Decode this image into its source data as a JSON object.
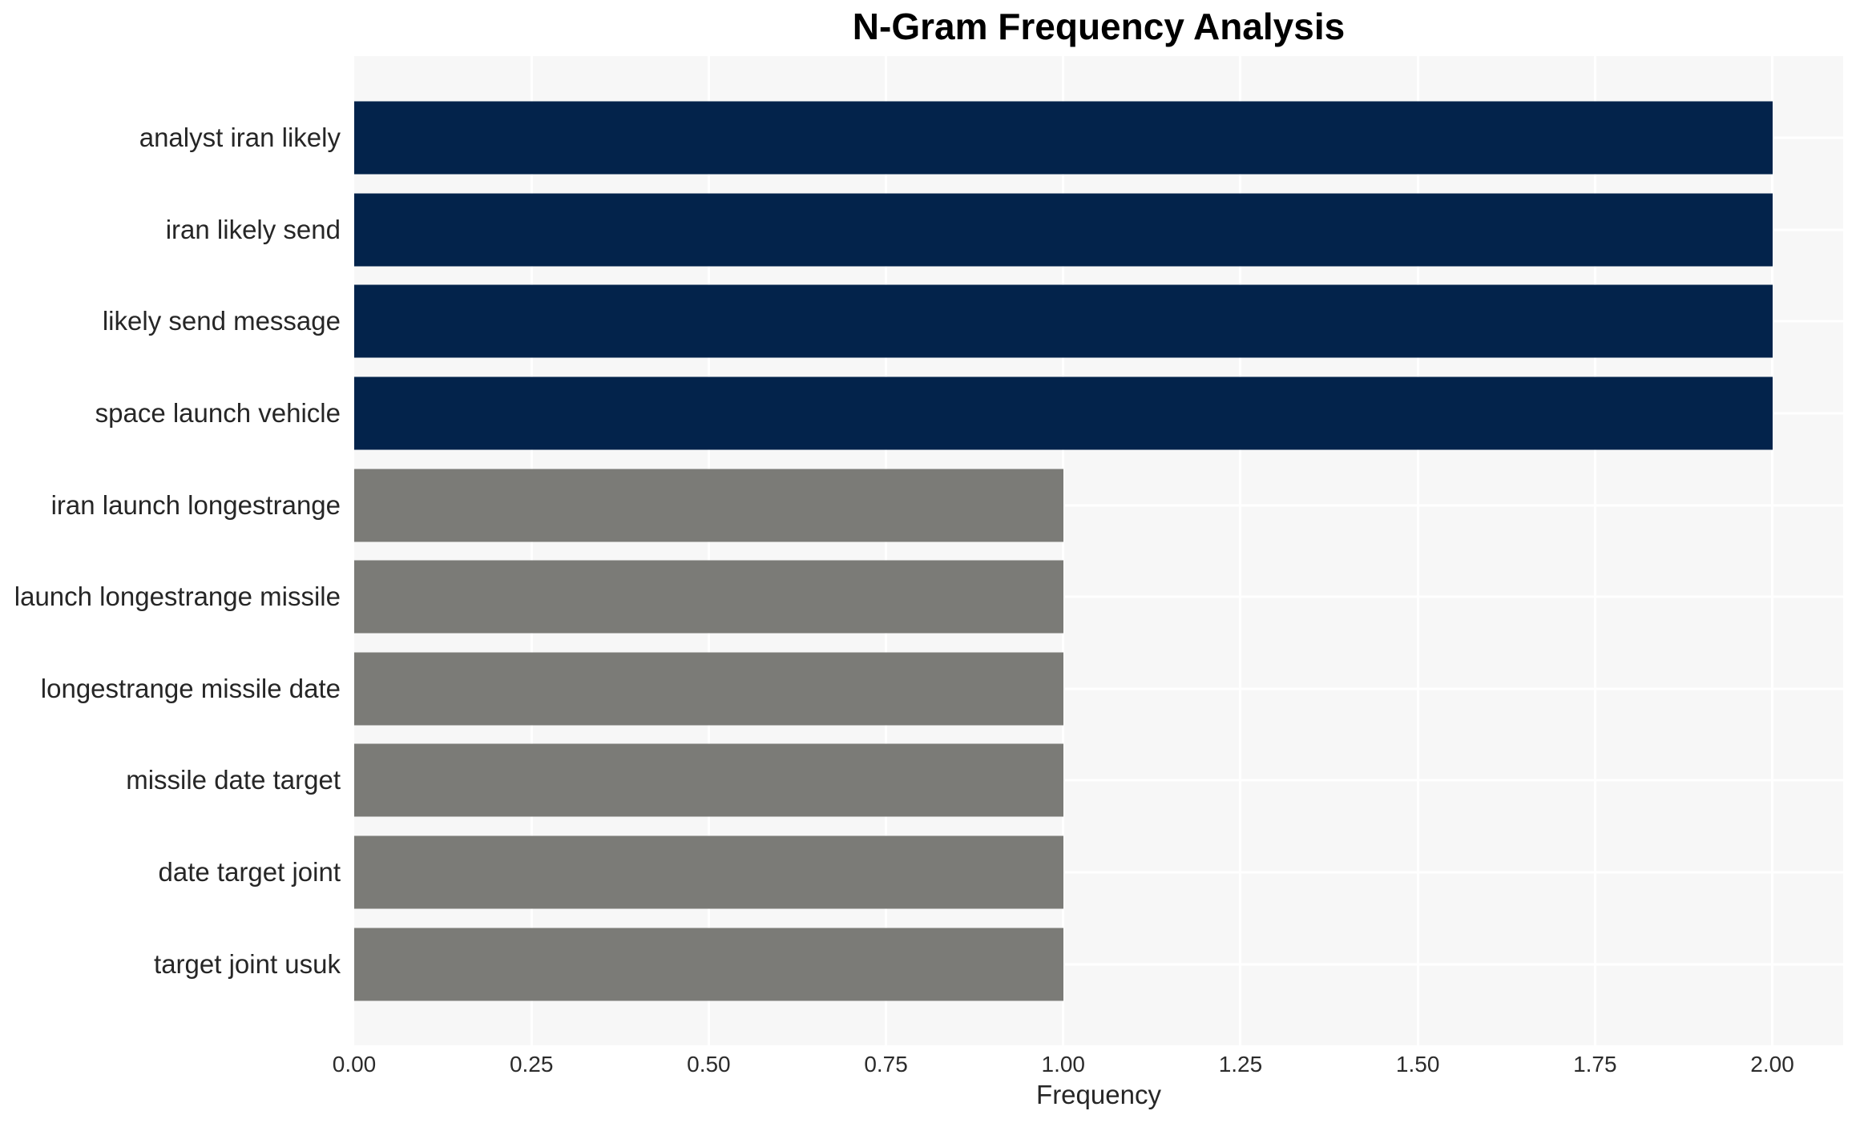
{
  "chart_data": {
    "type": "bar",
    "orientation": "horizontal",
    "title": "N-Gram Frequency Analysis",
    "xlabel": "Frequency",
    "ylabel": "",
    "categories": [
      "analyst iran likely",
      "iran likely send",
      "likely send message",
      "space launch vehicle",
      "iran launch longestrange",
      "launch longestrange missile",
      "longestrange missile date",
      "missile date target",
      "date target joint",
      "target joint usuk"
    ],
    "values": [
      2,
      2,
      2,
      2,
      1,
      1,
      1,
      1,
      1,
      1
    ],
    "bar_colors": [
      "#03234b",
      "#03234b",
      "#03234b",
      "#03234b",
      "#7b7b77",
      "#7b7b77",
      "#7b7b77",
      "#7b7b77",
      "#7b7b77",
      "#7b7b77"
    ],
    "xlim": [
      0,
      2.1
    ],
    "xticks": [
      0.0,
      0.25,
      0.5,
      0.75,
      1.0,
      1.25,
      1.5,
      1.75,
      2.0
    ],
    "xtick_labels": [
      "0.00",
      "0.25",
      "0.50",
      "0.75",
      "1.00",
      "1.25",
      "1.50",
      "1.75",
      "2.00"
    ],
    "grid": true,
    "legend": false
  },
  "style": {
    "plot_background": "#f7f7f7",
    "grid_color": "#ffffff",
    "bar_color_high": "#03234b",
    "bar_color_low": "#7b7b77",
    "title_color": "#000000",
    "label_color": "#262626"
  }
}
